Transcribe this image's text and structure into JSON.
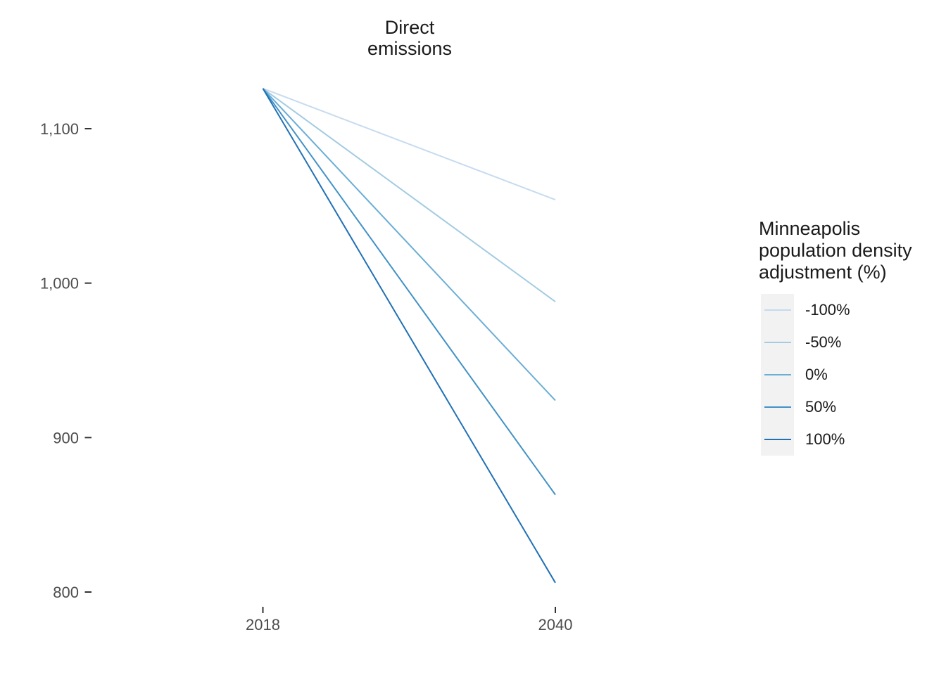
{
  "chart_data": {
    "type": "line",
    "title": "Direct emissions",
    "title_lines": [
      "Direct",
      "emissions"
    ],
    "x": [
      2018,
      2040
    ],
    "series": [
      {
        "name": "-100%",
        "color": "#C6DBEF",
        "values": [
          1126,
          1054
        ]
      },
      {
        "name": "-50%",
        "color": "#A3CBE2",
        "values": [
          1126,
          988
        ]
      },
      {
        "name": "0%",
        "color": "#6BAED6",
        "values": [
          1126,
          924
        ]
      },
      {
        "name": "50%",
        "color": "#4292C6",
        "values": [
          1126,
          863
        ]
      },
      {
        "name": "100%",
        "color": "#2171B5",
        "values": [
          1126,
          806
        ]
      }
    ],
    "legend": {
      "title": "Minneapolis population density adjustment (%)",
      "title_lines": [
        "Minneapolis",
        "population density",
        "adjustment (%)"
      ],
      "position": "right",
      "items": [
        "-100%",
        "-50%",
        "0%",
        "50%",
        "100%"
      ]
    },
    "x_axis": {
      "tick_labels": [
        "2018",
        "2040"
      ],
      "tick_values": [
        2018,
        2040
      ]
    },
    "y_axis": {
      "tick_labels": [
        "1,100",
        "1,000",
        "900",
        "800"
      ],
      "tick_values": [
        1100,
        1000,
        900,
        800
      ]
    },
    "ylim": [
      795,
      1130
    ],
    "grid": false,
    "colors": {
      "axis_text": "#4D4D4D",
      "tick_mark": "#333333",
      "title_text": "#1A1A1A",
      "legend_key_bg": "#F2F2F2",
      "background": "#FFFFFF"
    }
  }
}
